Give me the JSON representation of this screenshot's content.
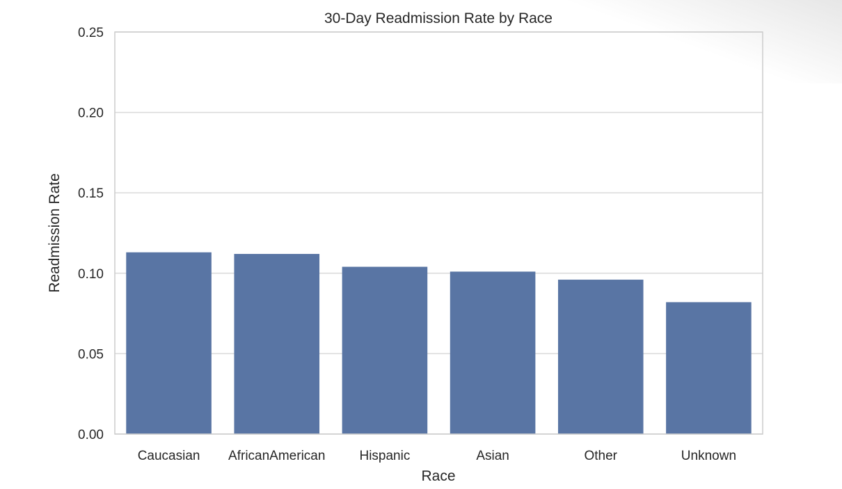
{
  "chart_data": {
    "type": "bar",
    "title": "30-Day Readmission Rate by Race",
    "xlabel": "Race",
    "ylabel": "Readmission Rate",
    "categories": [
      "Caucasian",
      "AfricanAmerican",
      "Hispanic",
      "Asian",
      "Other",
      "Unknown"
    ],
    "values": [
      0.113,
      0.112,
      0.104,
      0.101,
      0.096,
      0.082
    ],
    "ylim": [
      0,
      0.25
    ],
    "yticks": [
      "0.00",
      "0.05",
      "0.10",
      "0.15",
      "0.20",
      "0.25"
    ],
    "grid": true,
    "bar_color": "#5975a4",
    "grid_color": "#d9d9d9",
    "frame_color": "#cccccc"
  }
}
